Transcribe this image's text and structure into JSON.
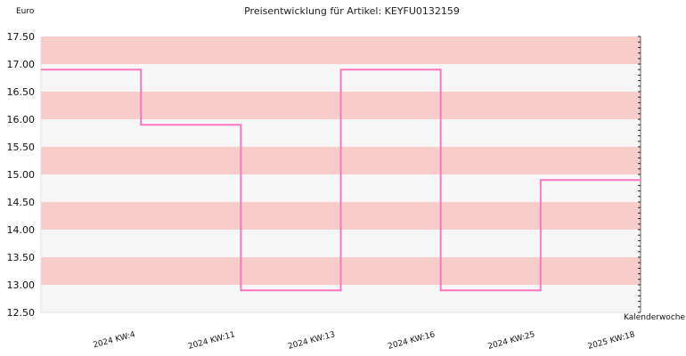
{
  "chart_data": {
    "type": "line",
    "step": true,
    "title": "Preisentwicklung für Artikel: KEYFU0132159",
    "ylabel": "Euro",
    "xlabel": "Kalenderwoche",
    "ylim": [
      12.5,
      17.5
    ],
    "y_ticks": [
      "17.50",
      "17.00",
      "16.50",
      "16.00",
      "15.50",
      "15.00",
      "14.50",
      "14.00",
      "13.50",
      "13.00",
      "12.50"
    ],
    "categories": [
      "2024 KW:4",
      "2024 KW:11",
      "2024 KW:13",
      "2024 KW:16",
      "2024 KW:25",
      "2025 KW:18"
    ],
    "series": [
      {
        "values": [
          16.9,
          15.9,
          12.9,
          16.9,
          12.9,
          14.9
        ]
      }
    ],
    "colors": {
      "line": "#ff77c0",
      "band_pink": "#f9cccc",
      "band_light": "#f6f6f6",
      "axis": "#666666"
    },
    "grid": false,
    "legend": "none"
  }
}
